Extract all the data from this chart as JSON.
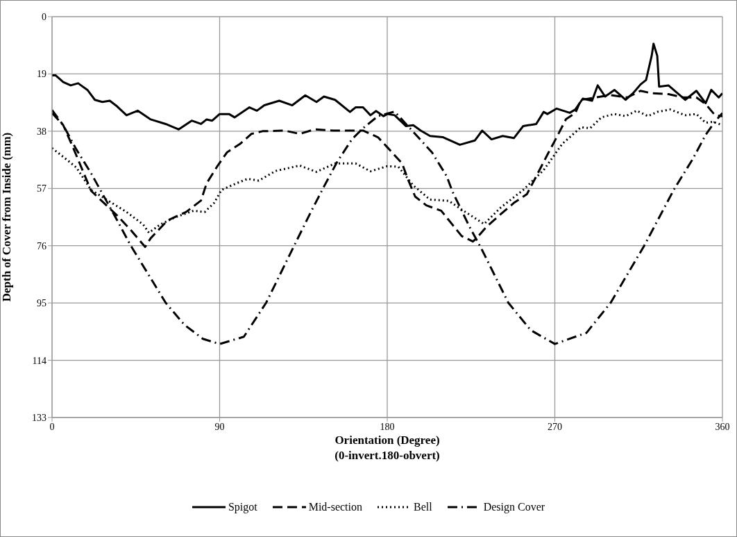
{
  "chart_data": {
    "type": "line",
    "xlabel": "Orientation (Degree)\n(0-invert.180-obvert)",
    "ylabel": "Depth of Cover from Inside (mm)",
    "xlim": [
      0,
      360
    ],
    "xticks": [
      0,
      90,
      180,
      270,
      360
    ],
    "ylim": [
      133,
      0
    ],
    "yticks": [
      0,
      19,
      38,
      57,
      76,
      95,
      114,
      133
    ],
    "grid": true,
    "legend": "bottom",
    "marker": "none",
    "series": [
      {
        "name": "Spigot",
        "color": "#000000",
        "line_style": "solid",
        "x": [
          0,
          2,
          6,
          10,
          14,
          19,
          23,
          27,
          31,
          35,
          40,
          46,
          53,
          61,
          68,
          75,
          80,
          83,
          86,
          90,
          95,
          98,
          106,
          110,
          114,
          122,
          129,
          136,
          142,
          146,
          152,
          160,
          163,
          167,
          171,
          174,
          178,
          180,
          184,
          190,
          194,
          198,
          203,
          210,
          219,
          227,
          231,
          236,
          242,
          248,
          253,
          260,
          264,
          266,
          271,
          278,
          281,
          285,
          290,
          293,
          297,
          302,
          308,
          312,
          316,
          319,
          322,
          323,
          325,
          326,
          331,
          340,
          346,
          351,
          354,
          358,
          360
        ],
        "values": [
          19.5,
          19.5,
          21.7,
          22.8,
          22.1,
          24.3,
          27.6,
          28.3,
          27.9,
          29.8,
          32.7,
          31.2,
          34.1,
          35.6,
          37.4,
          34.5,
          35.6,
          34.1,
          34.5,
          32.3,
          32.3,
          33.4,
          30.1,
          31.2,
          29.4,
          27.9,
          29.4,
          26.1,
          28.3,
          26.5,
          27.6,
          31.6,
          30.1,
          30.1,
          32.7,
          31.3,
          33,
          32.3,
          32.7,
          36.3,
          36,
          37.8,
          39.6,
          40,
          42.5,
          41.1,
          37.8,
          40.7,
          39.6,
          40.3,
          36.3,
          35.6,
          31.6,
          32.3,
          30.5,
          31.9,
          30.8,
          27.2,
          27.9,
          22.8,
          26.5,
          24.3,
          27.6,
          25.4,
          22.5,
          21,
          13,
          9,
          13,
          23.2,
          22.8,
          27.6,
          24.6,
          28.7,
          24.3,
          26.8,
          25.4
        ]
      },
      {
        "name": "Mid-section",
        "color": "#000000",
        "line_style": "dashed",
        "x": [
          0,
          6,
          11,
          21,
          35,
          42,
          50,
          53,
          62,
          72,
          80,
          83,
          89,
          94,
          101,
          107,
          113,
          125,
          133,
          141,
          151,
          158,
          167,
          175,
          180,
          188,
          191,
          195,
          201,
          209,
          215,
          220,
          226,
          228,
          233,
          241,
          248,
          255,
          260,
          266,
          271,
          276,
          281,
          284,
          292,
          300,
          309,
          316,
          322,
          331,
          339,
          346,
          351,
          356,
          360
        ],
        "values": [
          31,
          36,
          43,
          57.8,
          66,
          70.6,
          76.4,
          73.5,
          67.6,
          64.8,
          61,
          55.3,
          49.4,
          45,
          42.2,
          38.9,
          38,
          37.8,
          38.9,
          37.4,
          37.8,
          37.8,
          37.8,
          40,
          43.3,
          48.7,
          53.8,
          59.7,
          62.6,
          64.4,
          69,
          72.8,
          74.6,
          73.5,
          69.9,
          65.5,
          61.8,
          58.9,
          53,
          45.8,
          40,
          34,
          32,
          27.6,
          26.8,
          26,
          26.8,
          24.6,
          25.4,
          25.7,
          26.8,
          26.8,
          29,
          32.7,
          33
        ]
      },
      {
        "name": "Bell",
        "color": "#000000",
        "line_style": "dotted",
        "x": [
          0,
          6,
          13,
          21,
          30,
          40,
          49,
          52,
          58,
          66,
          76,
          82,
          87,
          91,
          99,
          105,
          111,
          120,
          133,
          142,
          152,
          163,
          171,
          180,
          186,
          194,
          203,
          213,
          220,
          232,
          241,
          253,
          264,
          274,
          284,
          289,
          295,
          302,
          308,
          314,
          320,
          325,
          332,
          340,
          346,
          351,
          355,
          360
        ],
        "values": [
          43.6,
          46.5,
          50,
          57.5,
          61,
          64.8,
          69,
          71.7,
          69,
          66.6,
          64.4,
          64.8,
          61.8,
          57.5,
          55.3,
          53.8,
          54.4,
          51.2,
          49.4,
          51.5,
          48.7,
          48.7,
          51.3,
          49.6,
          49.8,
          56,
          60.7,
          61.1,
          64,
          68.8,
          63.3,
          57.5,
          50.9,
          42.2,
          36.7,
          37,
          33.4,
          32.3,
          33,
          31.2,
          33,
          31.6,
          30.8,
          32.7,
          32.3,
          35.2,
          34.9,
          36
        ]
      },
      {
        "name": "Design Cover",
        "color": "#000000",
        "line_style": "dashdot",
        "x": [
          0,
          6,
          13,
          21,
          35,
          42,
          61,
          71,
          81,
          90,
          103,
          115,
          130,
          139,
          146,
          153,
          161,
          167,
          175,
          184,
          204,
          212,
          215,
          224,
          231,
          245,
          257,
          270,
          287,
          300,
          318,
          334,
          344,
          351,
          356,
          360
        ],
        "values": [
          32,
          36,
          44,
          52,
          67.6,
          75.7,
          94.9,
          102.2,
          106.9,
          108.6,
          106.2,
          94.9,
          76,
          64.8,
          56.4,
          48.3,
          40.7,
          37,
          33,
          31.5,
          45,
          53,
          58,
          69.5,
          77.5,
          94.9,
          104,
          108.6,
          104.9,
          94.9,
          76,
          57.3,
          47.3,
          39.2,
          34.8,
          32
        ]
      }
    ]
  }
}
